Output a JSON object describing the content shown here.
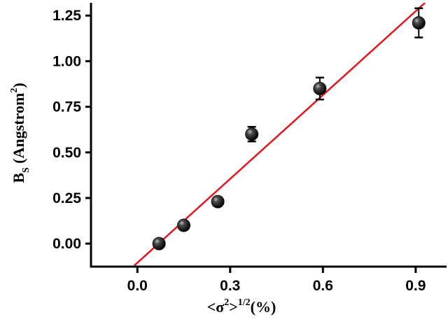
{
  "chart_data": {
    "type": "scatter",
    "xlabel": {
      "prefix": "<σ",
      "sup": "2",
      "middle": ">",
      "sup2": "1/2",
      "suffix": "(%)"
    },
    "ylabel": {
      "main": "B",
      "sub": "S",
      "open": " (Angstrom",
      "sup": "2",
      "close": ")"
    },
    "xlim": [
      -0.15,
      1.0
    ],
    "ylim": [
      -0.13,
      1.32
    ],
    "x_ticks": [
      0.0,
      0.3,
      0.6,
      0.9
    ],
    "x_tick_labels": [
      "0.0",
      "0.3",
      "0.6",
      "0.9"
    ],
    "y_ticks": [
      0.0,
      0.25,
      0.5,
      0.75,
      1.0,
      1.25
    ],
    "y_tick_labels": [
      "0.00",
      "0.25",
      "0.50",
      "0.75",
      "1.00",
      "1.25"
    ],
    "points": [
      {
        "x": 0.07,
        "y": 0.0,
        "err": 0.02
      },
      {
        "x": 0.15,
        "y": 0.1,
        "err": 0.02
      },
      {
        "x": 0.26,
        "y": 0.23,
        "err": 0.02
      },
      {
        "x": 0.37,
        "y": 0.6,
        "err": 0.04
      },
      {
        "x": 0.59,
        "y": 0.85,
        "err": 0.06
      },
      {
        "x": 0.91,
        "y": 1.21,
        "err": 0.08
      }
    ],
    "fit_line": {
      "x": [
        -0.01,
        0.93
      ],
      "y": [
        -0.12,
        1.32
      ],
      "color": "#e8141b"
    },
    "grid": false,
    "marker_color": "#111111"
  }
}
